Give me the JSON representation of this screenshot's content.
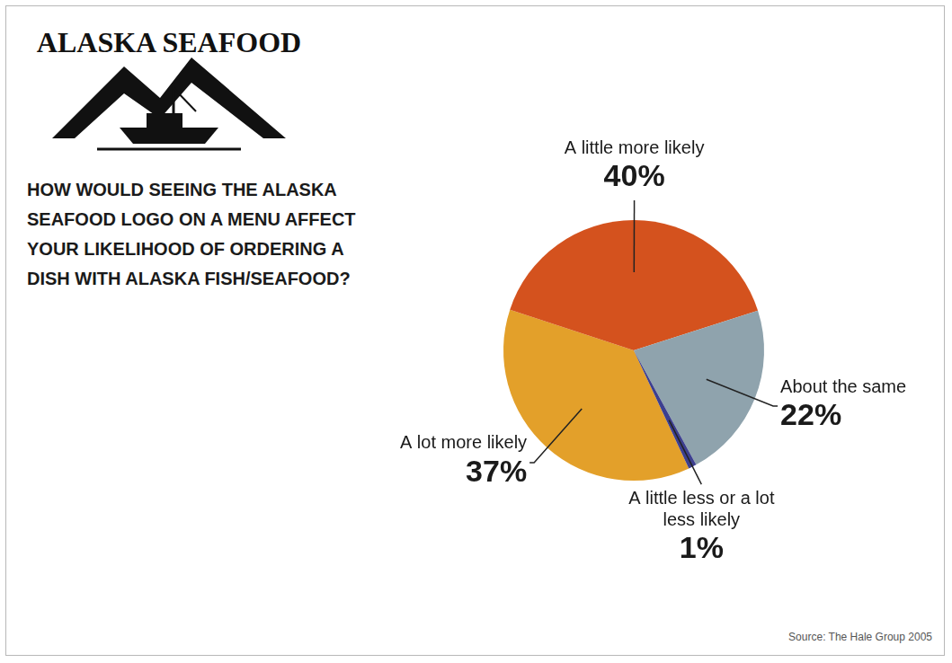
{
  "logo": "ALASKA SEAFOOD",
  "chart_data": {
    "type": "pie",
    "title": "HOW WOULD SEEING THE ALASKA SEAFOOD LOGO ON A MENU AFFECT YOUR LIKELIHOOD OF ORDERING A DISH WITH ALASKA FISH/SEAFOOD?",
    "categories": [
      "A lot more likely",
      "A little more likely",
      "About the same",
      "A little less or a lot less likely"
    ],
    "values": [
      37,
      40,
      22,
      1
    ],
    "value_labels": [
      "37%",
      "40%",
      "22%",
      "1%"
    ],
    "colors": [
      "#e3a02a",
      "#d4521e",
      "#8fa3ad",
      "#3d3f8f"
    ],
    "data_labels": true,
    "source": "Source: The Hale Group 2005"
  }
}
